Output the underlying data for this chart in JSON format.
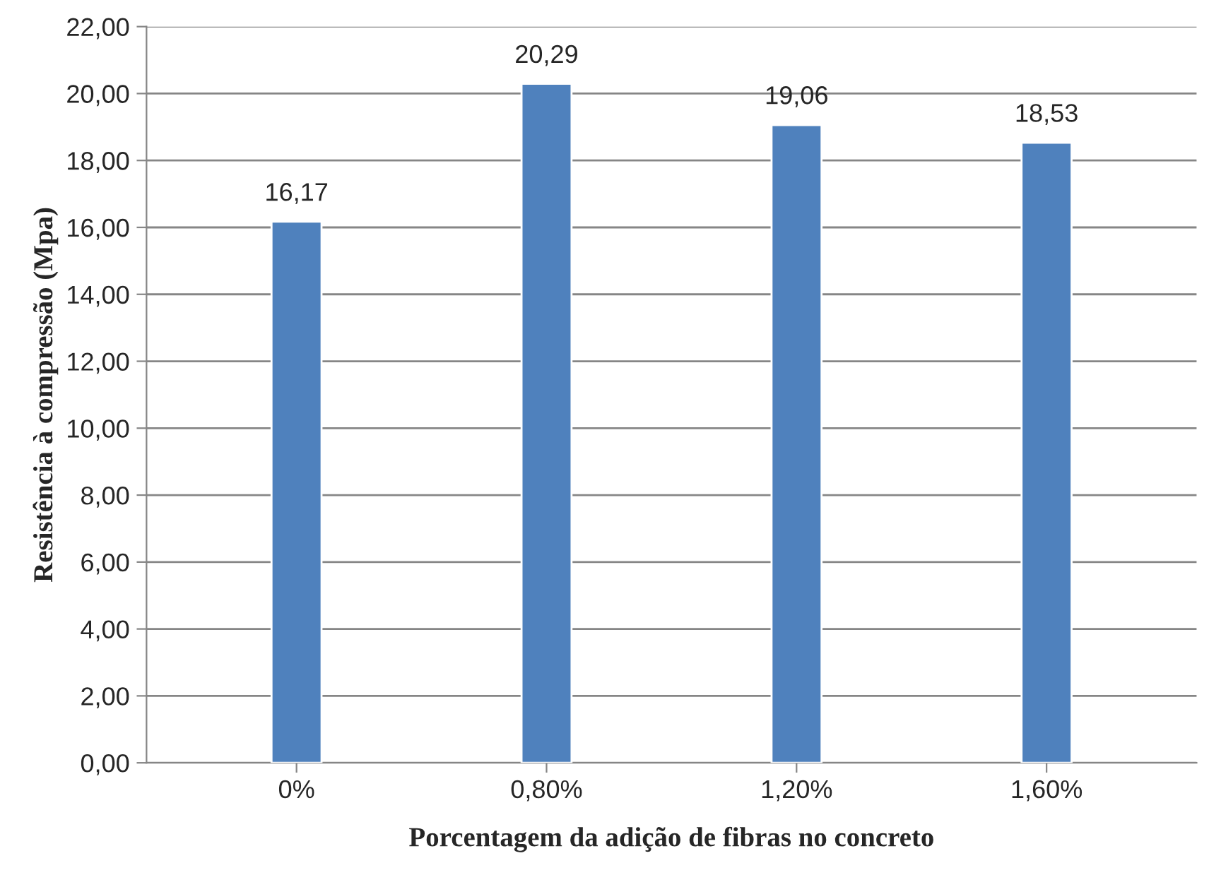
{
  "chart_data": {
    "type": "bar",
    "xlabel": "Porcentagem da adição de fibras no concreto",
    "ylabel": "Resistência à compressão (Mpa)",
    "categories": [
      "0%",
      "0,80%",
      "1,20%",
      "1,60%"
    ],
    "values": [
      16.17,
      20.29,
      19.06,
      18.53
    ],
    "value_labels": [
      "16,17",
      "20,29",
      "19,06",
      "18,53"
    ],
    "color": "#4f81bd",
    "ylim": [
      0,
      22
    ],
    "yticks": [
      {
        "value": 0,
        "label": "0,00"
      },
      {
        "value": 2,
        "label": "2,00"
      },
      {
        "value": 4,
        "label": "4,00"
      },
      {
        "value": 6,
        "label": "6,00"
      },
      {
        "value": 8,
        "label": "8,00"
      },
      {
        "value": 10,
        "label": "10,00"
      },
      {
        "value": 12,
        "label": "12,00"
      },
      {
        "value": 14,
        "label": "14,00"
      },
      {
        "value": 16,
        "label": "16,00"
      },
      {
        "value": 18,
        "label": "18,00"
      },
      {
        "value": 20,
        "label": "20,00"
      },
      {
        "value": 22,
        "label": "22,00"
      }
    ],
    "grid": "y",
    "legend": false
  }
}
